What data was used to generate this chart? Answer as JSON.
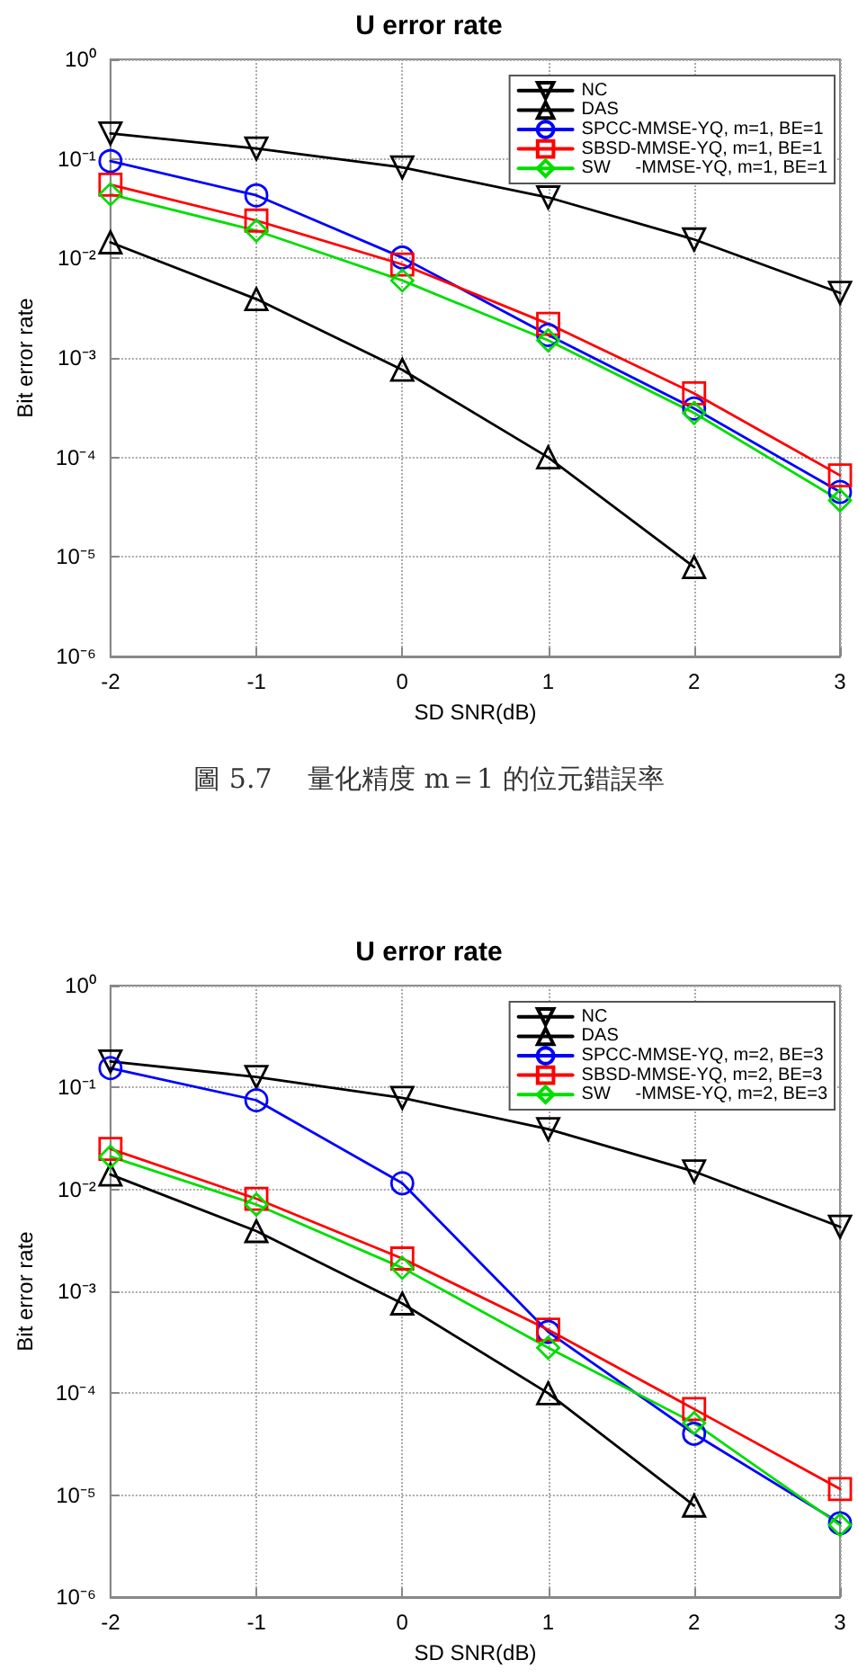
{
  "chart_data": [
    {
      "type": "line",
      "title": "U error rate",
      "xlabel": "SD SNR(dB)",
      "ylabel": "Bit error rate",
      "x": [
        -2,
        -1,
        0,
        1,
        2,
        3
      ],
      "xlim": [
        -2,
        3
      ],
      "xticks": [
        -2,
        -1,
        0,
        1,
        2,
        3
      ],
      "log": true,
      "ylim": [
        1e-06,
        1
      ],
      "yticks": [
        {
          "value": 1e-06,
          "label": "10⁻⁶"
        },
        {
          "value": 1e-05,
          "label": "10⁻⁵"
        },
        {
          "value": 0.0001,
          "label": "10⁻⁴"
        },
        {
          "value": 0.001,
          "label": "10⁻³"
        },
        {
          "value": 0.01,
          "label": "10⁻²"
        },
        {
          "value": 0.1,
          "label": "10⁻¹"
        },
        {
          "value": 1,
          "label": "10⁰"
        }
      ],
      "grid": true,
      "legend": "top right",
      "line_style": "solid",
      "series": [
        {
          "name": "NC",
          "color": "#000000",
          "marker": "triangle-down",
          "values": [
            0.18,
            0.127,
            0.082,
            0.041,
            0.0155,
            0.0045
          ]
        },
        {
          "name": "DAS",
          "color": "#000000",
          "marker": "triangle",
          "values": [
            0.0145,
            0.0039,
            0.00076,
            0.0001,
            7.9e-06,
            null
          ]
        },
        {
          "name": "SPCC-MMSE-YQ, m=1, BE=1",
          "color": "#0000ff",
          "marker": "circle",
          "values": [
            0.095,
            0.043,
            0.0102,
            0.0017,
            0.00031,
            4.5e-05
          ]
        },
        {
          "name": "SBSD-MMSE-YQ, m=1, BE=1",
          "color": "#ff0000",
          "marker": "square",
          "values": [
            0.055,
            0.024,
            0.0087,
            0.0022,
            0.00044,
            6.6e-05
          ]
        },
        {
          "name": "SW     -MMSE-YQ, m=1, BE=1",
          "color": "#00dd00",
          "marker": "diamond",
          "values": [
            0.044,
            0.019,
            0.006,
            0.0015,
            0.00028,
            3.7e-05
          ]
        }
      ],
      "annotations": [
        "圖 5.7　 量化精度 m＝1 的位元錯誤率"
      ]
    },
    {
      "type": "line",
      "title": "U error rate",
      "xlabel": "SD SNR(dB)",
      "ylabel": "Bit error rate",
      "x": [
        -2,
        -1,
        0,
        1,
        2,
        3
      ],
      "xlim": [
        -2,
        3
      ],
      "xticks": [
        -2,
        -1,
        0,
        1,
        2,
        3
      ],
      "log": true,
      "ylim": [
        1e-06,
        1
      ],
      "yticks": [
        {
          "value": 1e-06,
          "label": "10⁻⁶"
        },
        {
          "value": 1e-05,
          "label": "10⁻⁵"
        },
        {
          "value": 0.0001,
          "label": "10⁻⁴"
        },
        {
          "value": 0.001,
          "label": "10⁻³"
        },
        {
          "value": 0.01,
          "label": "10⁻²"
        },
        {
          "value": 0.1,
          "label": "10⁻¹"
        },
        {
          "value": 1,
          "label": "10⁰"
        }
      ],
      "grid": true,
      "legend": "top right",
      "line_style": "solid",
      "series": [
        {
          "name": "NC",
          "color": "#000000",
          "marker": "triangle-down",
          "values": [
            0.18,
            0.127,
            0.079,
            0.039,
            0.015,
            0.0043
          ]
        },
        {
          "name": "DAS",
          "color": "#000000",
          "marker": "triangle",
          "values": [
            0.014,
            0.0039,
            0.00076,
            0.0001,
            7.9e-06,
            null
          ]
        },
        {
          "name": "SPCC-MMSE-YQ, m=2, BE=3",
          "color": "#0000ff",
          "marker": "circle",
          "values": [
            0.155,
            0.075,
            0.0115,
            0.0004,
            4e-05,
            5.3e-06
          ]
        },
        {
          "name": "SBSD-MMSE-YQ, m=2, BE=3",
          "color": "#ff0000",
          "marker": "square",
          "values": [
            0.025,
            0.0081,
            0.0021,
            0.00042,
            7e-05,
            1.15e-05
          ]
        },
        {
          "name": "SW     -MMSE-YQ, m=2, BE=3",
          "color": "#00dd00",
          "marker": "diamond",
          "values": [
            0.021,
            0.0071,
            0.0017,
            0.00028,
            5.1e-05,
            5.1e-06
          ]
        }
      ]
    }
  ]
}
